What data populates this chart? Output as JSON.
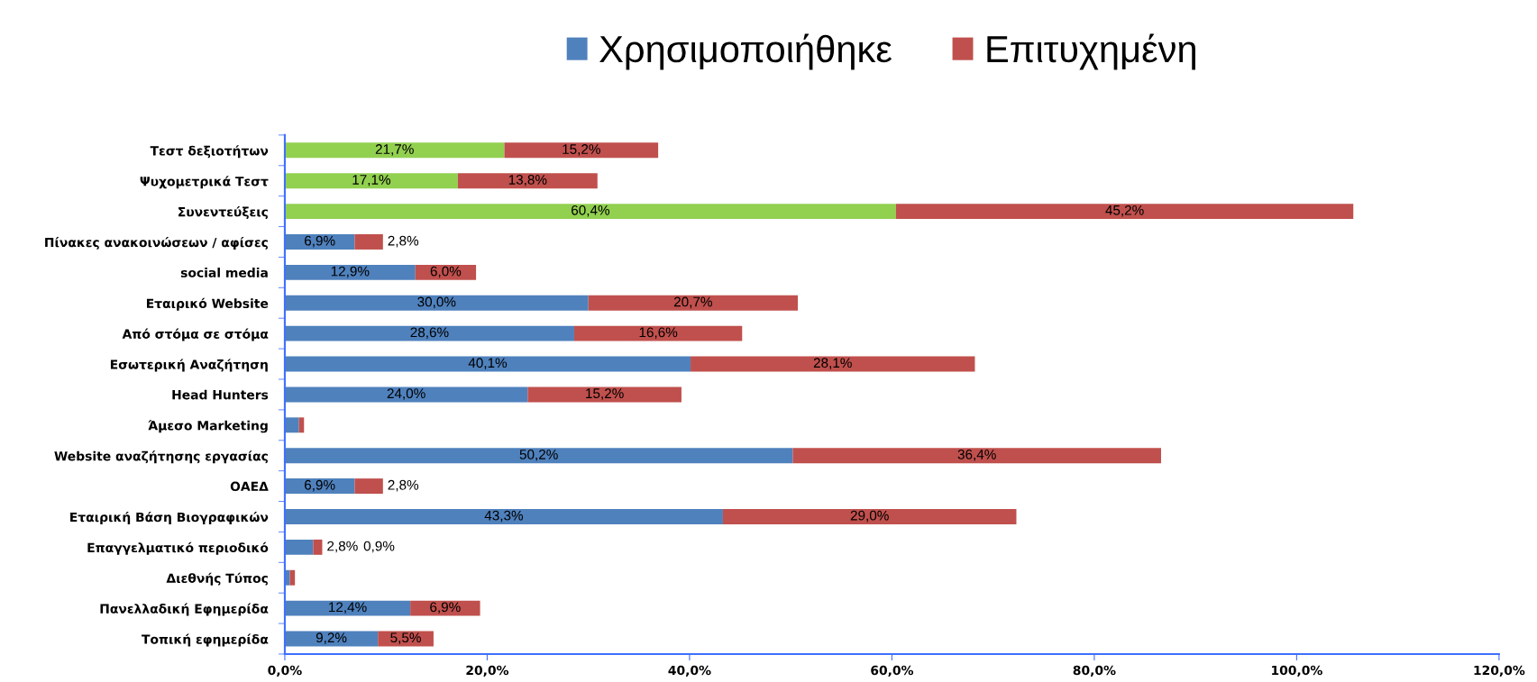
{
  "chart_data": {
    "type": "bar",
    "orientation": "horizontal",
    "stacked": true,
    "categories": [
      "Τεστ δεξιοτήτων",
      "Ψυχομετρικά Τεστ",
      "Συνεντεύξεις",
      "Πίνακες ανακοινώσεων / αφίσες",
      "social media",
      "Εταιρικό Website",
      "Από στόμα σε στόμα",
      "Εσωτερική Αναζήτηση",
      "Head Hunters",
      "Άμεσο Marketing",
      "Website αναζήτησης εργασίας",
      "ΟΑΕΔ",
      "Εταιρική Βάση Βιογραφικών",
      "Επαγγελματικό περιοδικό",
      "Διεθνής Τύπος",
      "Πανελλαδική Εφημερίδα",
      "Τοπική εφημερίδα"
    ],
    "series": [
      {
        "name": "Χρησιμοποιήθηκε",
        "color": "#4f81bd",
        "colors": [
          "#92d050",
          "#92d050",
          "#92d050",
          "#4f81bd",
          "#4f81bd",
          "#4f81bd",
          "#4f81bd",
          "#4f81bd",
          "#4f81bd",
          "#4f81bd",
          "#4f81bd",
          "#4f81bd",
          "#4f81bd",
          "#4f81bd",
          "#4f81bd",
          "#4f81bd",
          "#4f81bd"
        ],
        "values": [
          21.7,
          17.1,
          60.4,
          6.9,
          12.9,
          30.0,
          28.6,
          40.1,
          24.0,
          1.4,
          50.2,
          6.9,
          43.3,
          2.8,
          0.5,
          12.4,
          9.2
        ],
        "value_labels": [
          "21,7%",
          "17,1%",
          "60,4%",
          "6,9%",
          "12,9%",
          "30,0%",
          "28,6%",
          "40,1%",
          "24,0%",
          null,
          "50,2%",
          "6,9%",
          "43,3%",
          "2,8%",
          null,
          "12,4%",
          "9,2%"
        ]
      },
      {
        "name": "Επιτυχημένη",
        "color": "#c0504d",
        "values": [
          15.2,
          13.8,
          45.2,
          2.8,
          6.0,
          20.7,
          16.6,
          28.1,
          15.2,
          0.5,
          36.4,
          2.8,
          29.0,
          0.9,
          0.5,
          6.9,
          5.5
        ],
        "value_labels": [
          "15,2%",
          "13,8%",
          "45,2%",
          "2,8%",
          "6,0%",
          "20,7%",
          "16,6%",
          "28,1%",
          "15,2%",
          null,
          "36,4%",
          "2,8%",
          "29,0%",
          "0,9%",
          null,
          "6,9%",
          "5,5%"
        ]
      }
    ],
    "xlim": [
      0,
      120
    ],
    "xticks": [
      {
        "value": 0,
        "label": "0,0%"
      },
      {
        "value": 20,
        "label": "20,0%"
      },
      {
        "value": 40,
        "label": "40,0%"
      },
      {
        "value": 60,
        "label": "60,0%"
      },
      {
        "value": 80,
        "label": "80,0%"
      },
      {
        "value": 100,
        "label": "100,0%"
      },
      {
        "value": 120,
        "label": "120,0%"
      }
    ],
    "legend": "top",
    "grid": false
  }
}
